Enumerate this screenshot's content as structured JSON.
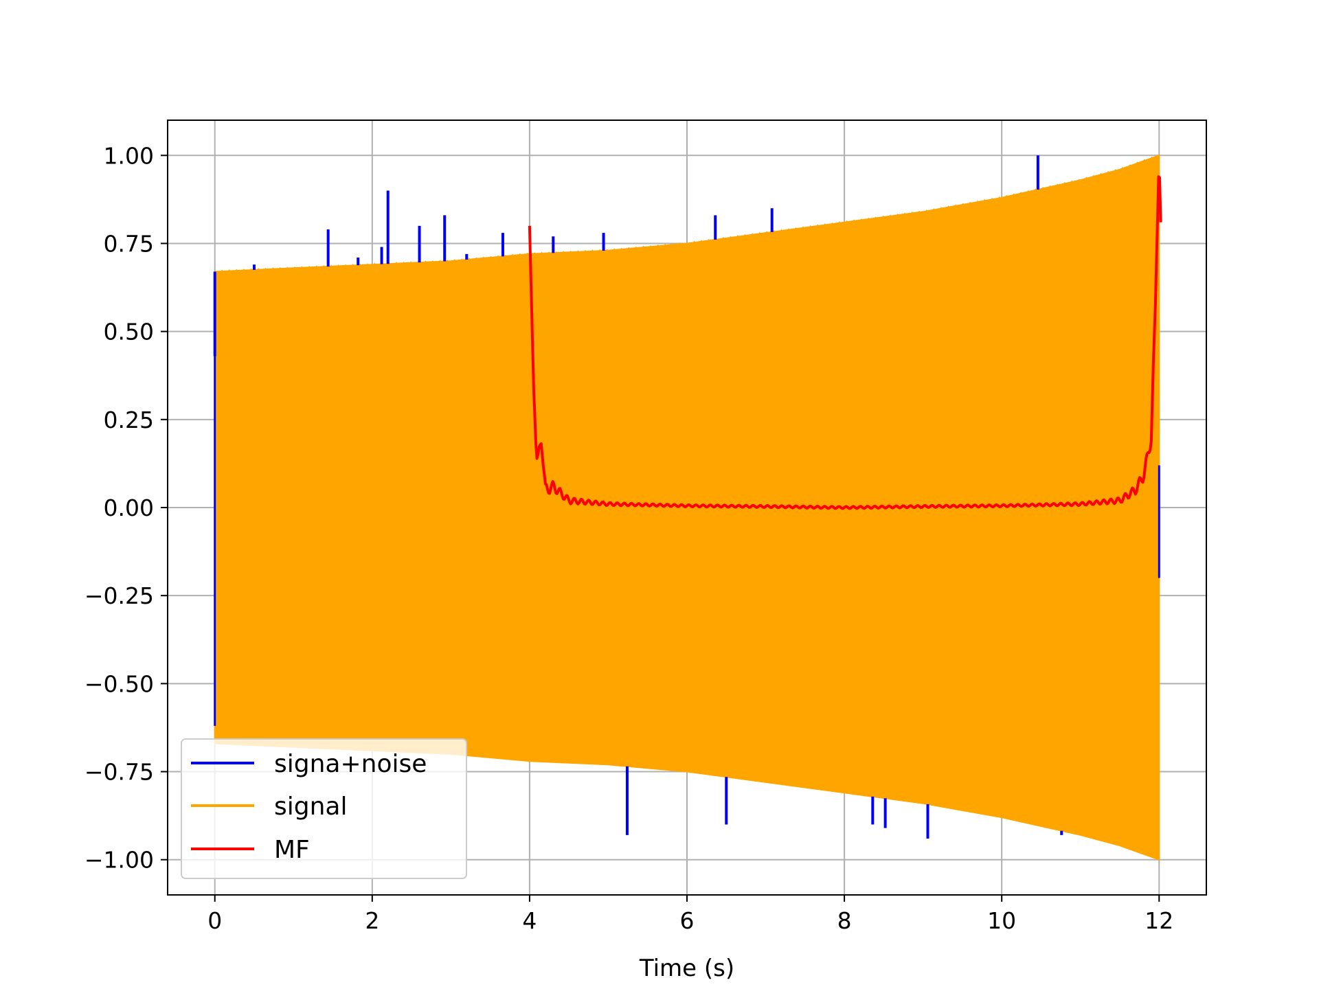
{
  "chart_data": {
    "type": "line",
    "title": "",
    "xlabel": "Time (s)",
    "ylabel": "",
    "xlim": [
      -0.6,
      12.6
    ],
    "ylim": [
      -1.1,
      1.1
    ],
    "xticks": [
      0,
      2,
      4,
      6,
      8,
      10,
      12
    ],
    "xtick_labels": [
      "0",
      "2",
      "4",
      "6",
      "8",
      "10",
      "12"
    ],
    "yticks": [
      1.0,
      0.75,
      0.5,
      0.25,
      0.0,
      -0.25,
      -0.5,
      -0.75,
      -1.0
    ],
    "ytick_labels": [
      "1.00",
      "0.75",
      "0.50",
      "0.25",
      "0.00",
      "−0.25",
      "−0.50",
      "−0.75",
      "−1.00"
    ],
    "grid": true,
    "legend_position": "lower-left",
    "series": [
      {
        "name": "signa+noise",
        "color": "#0000ff",
        "kind": "noisy envelope with spikes",
        "x": [
          0,
          0.5,
          1.44,
          1.82,
          2.12,
          2.2,
          2.6,
          2.92,
          3.2,
          3.66,
          4.3,
          4.94,
          5.24,
          6.36,
          6.5,
          7.08,
          8.36,
          8.52,
          9.06,
          10.46,
          10.76
        ],
        "y": [
          0.43,
          0.69,
          0.79,
          0.71,
          0.74,
          0.9,
          0.8,
          0.83,
          0.72,
          0.78,
          0.77,
          0.78,
          -0.93,
          0.83,
          -0.9,
          0.85,
          -0.9,
          -0.91,
          -0.94,
          1.0,
          -0.93
        ]
      },
      {
        "name": "signal",
        "color": "#ffa500",
        "kind": "oscillation filling envelope",
        "x": [
          0,
          1,
          2,
          3,
          4,
          5,
          6,
          7,
          8,
          9,
          10,
          11,
          11.5,
          12
        ],
        "upper": [
          0.67,
          0.68,
          0.69,
          0.7,
          0.72,
          0.73,
          0.75,
          0.78,
          0.81,
          0.84,
          0.88,
          0.93,
          0.96,
          1.0
        ],
        "lower": [
          -0.67,
          -0.68,
          -0.69,
          -0.7,
          -0.72,
          -0.73,
          -0.75,
          -0.78,
          -0.81,
          -0.84,
          -0.88,
          -0.93,
          -0.96,
          -1.0
        ]
      },
      {
        "name": "MF",
        "color": "#ff0000",
        "kind": "matched filter output",
        "x": [
          4.0,
          4.05,
          4.08,
          4.1,
          4.15,
          4.2,
          4.3,
          4.5,
          5.0,
          6.0,
          7.0,
          8.0,
          9.0,
          10.0,
          11.0,
          11.5,
          11.7,
          11.8,
          11.85,
          11.9,
          11.95,
          12.0,
          12.02
        ],
        "y": [
          0.8,
          0.35,
          0.18,
          0.12,
          0.2,
          0.05,
          0.06,
          0.02,
          0.01,
          0.005,
          0.003,
          0.0,
          0.003,
          0.005,
          0.01,
          0.02,
          0.05,
          0.09,
          0.14,
          0.2,
          0.55,
          1.0,
          0.81
        ]
      }
    ]
  }
}
